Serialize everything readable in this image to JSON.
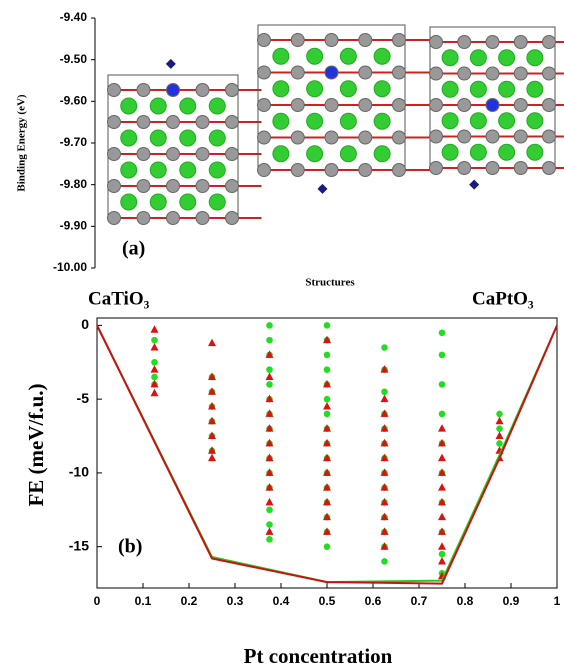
{
  "chart_data": [
    {
      "type": "scatter",
      "ylabel": "Binding Energy (eV)",
      "xlabel": "Structures",
      "annotation": "(a)",
      "categories": [
        null,
        null,
        null
      ],
      "values": [
        -9.51,
        -9.81,
        -9.8
      ],
      "color": "#1a1a80",
      "marker": "diamond",
      "ylim": [
        -10.0,
        -9.4
      ],
      "yticks": [
        {
          "value": -10.0,
          "label": "-10.00"
        },
        {
          "value": -9.9,
          "label": "-9.90"
        },
        {
          "value": -9.8,
          "label": "-9.80"
        },
        {
          "value": -9.7,
          "label": "-9.70"
        },
        {
          "value": -9.6,
          "label": "-9.60"
        },
        {
          "value": -9.5,
          "label": "-9.50"
        },
        {
          "value": -9.4,
          "label": "-9.40"
        }
      ]
    },
    {
      "type": "scatter",
      "ylabel": "FE (meV/f.u.)",
      "xlabel": "Pt concentration",
      "annotation": "(b)",
      "labels": [
        "CaTiO₃",
        "CaPtO₃"
      ],
      "xlim": [
        0,
        1
      ],
      "xticks": [
        0,
        0.1,
        0.2,
        0.3,
        0.4,
        0.5,
        0.6,
        0.7,
        0.8,
        0.9,
        1
      ],
      "ylim": [
        -17.8,
        0.5
      ],
      "yticks": [
        -15,
        -10,
        -5,
        0
      ],
      "series": [
        {
          "color": "#22dd22",
          "marker": "circle",
          "x": [
            0.125,
            0.125,
            0.125,
            0.125,
            0.25,
            0.25,
            0.25,
            0.25,
            0.25,
            0.25,
            0.375,
            0.375,
            0.375,
            0.375,
            0.375,
            0.375,
            0.375,
            0.375,
            0.375,
            0.375,
            0.375,
            0.375,
            0.375,
            0.375,
            0.375,
            0.5,
            0.5,
            0.5,
            0.5,
            0.5,
            0.5,
            0.5,
            0.5,
            0.5,
            0.5,
            0.5,
            0.5,
            0.5,
            0.5,
            0.5,
            0.5,
            0.625,
            0.625,
            0.625,
            0.625,
            0.625,
            0.625,
            0.625,
            0.625,
            0.625,
            0.625,
            0.625,
            0.625,
            0.625,
            0.625,
            0.75,
            0.75,
            0.75,
            0.75,
            0.75,
            0.75,
            0.75,
            0.75,
            0.75,
            0.75,
            0.875,
            0.875,
            0.875
          ],
          "values": [
            -1,
            -2.5,
            -3.5,
            -4,
            -3.5,
            -4.5,
            -5.5,
            -6.5,
            -7.5,
            -8.5,
            0,
            -1,
            -2,
            -3,
            -4,
            -5,
            -6,
            -7,
            -8,
            -9,
            -10,
            -11,
            -12.5,
            -13.5,
            -14.5,
            0,
            -1,
            -2,
            -3,
            -4,
            -5,
            -6,
            -7,
            -8,
            -9,
            -10,
            -11,
            -12,
            -13,
            -14,
            -15,
            -1.5,
            -3,
            -4.5,
            -6,
            -7,
            -8,
            -9,
            -10,
            -11,
            -12,
            -13,
            -14,
            -15,
            -16,
            -0.5,
            -2,
            -4,
            -6,
            -8,
            -10,
            -12,
            -14,
            -15.5,
            -16.8,
            -6,
            -7,
            -8
          ]
        },
        {
          "color": "#dd1111",
          "marker": "triangle",
          "x": [
            0.125,
            0.125,
            0.125,
            0.125,
            0.125,
            0.25,
            0.25,
            0.25,
            0.25,
            0.25,
            0.25,
            0.25,
            0.25,
            0.375,
            0.375,
            0.375,
            0.375,
            0.375,
            0.375,
            0.375,
            0.375,
            0.375,
            0.375,
            0.375,
            0.5,
            0.5,
            0.5,
            0.5,
            0.5,
            0.5,
            0.5,
            0.5,
            0.5,
            0.5,
            0.5,
            0.625,
            0.625,
            0.625,
            0.625,
            0.625,
            0.625,
            0.625,
            0.625,
            0.625,
            0.625,
            0.625,
            0.625,
            0.75,
            0.75,
            0.75,
            0.75,
            0.75,
            0.75,
            0.75,
            0.75,
            0.75,
            0.75,
            0.75,
            0.875,
            0.875,
            0.875,
            0.875
          ],
          "values": [
            -0.3,
            -1.5,
            -3,
            -4,
            -4.6,
            -1.2,
            -3.5,
            -4.5,
            -5.5,
            -6.5,
            -7.5,
            -8.5,
            -9,
            -2,
            -3.5,
            -5,
            -6,
            -7,
            -8,
            -9,
            -10,
            -11,
            -12,
            -14,
            -1,
            -4,
            -5.5,
            -7,
            -8,
            -9,
            -10,
            -11,
            -12,
            -13,
            -14,
            -3,
            -5,
            -6,
            -7,
            -8,
            -9,
            -10,
            -11,
            -12,
            -13,
            -14,
            -15,
            -7,
            -8,
            -9,
            -10,
            -11,
            -12,
            -13,
            -14,
            -15,
            -16,
            -17,
            -6.5,
            -7.5,
            -8.5,
            -9
          ]
        },
        {
          "color": "#22cc22",
          "marker": "line",
          "x": [
            0,
            0.25,
            0.5,
            0.75,
            0.875,
            1
          ],
          "values": [
            0,
            -15.7,
            -17.4,
            -17.3,
            -8.8,
            0
          ]
        },
        {
          "color": "#cc1111",
          "marker": "line",
          "x": [
            0,
            0.25,
            0.5,
            0.75,
            0.875,
            1
          ],
          "values": [
            0,
            -15.8,
            -17.4,
            -17.5,
            -9,
            0
          ]
        }
      ]
    }
  ]
}
